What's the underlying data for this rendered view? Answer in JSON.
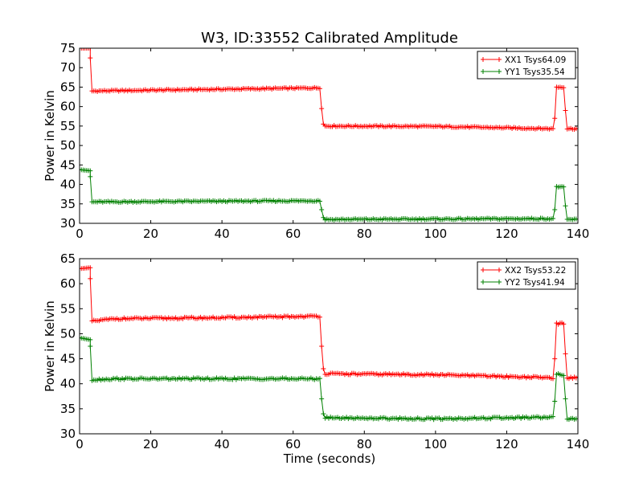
{
  "chart_data": {
    "title": "W3, ID:33552 Calibrated Amplitude",
    "xlabel": "Time (seconds)",
    "subplots": [
      {
        "type": "line",
        "ylabel": "Power in Kelvin",
        "xlim": [
          0,
          140
        ],
        "ylim": [
          30,
          75
        ],
        "xticks": [
          0,
          20,
          40,
          60,
          80,
          100,
          120,
          140
        ],
        "yticks": [
          30,
          35,
          40,
          45,
          50,
          55,
          60,
          65,
          70,
          75
        ],
        "legend_position": "top-right",
        "marker": "+",
        "series": [
          {
            "name": "XX1 Tsys64.09",
            "color": "#ff0000",
            "segments": [
              {
                "x": [
                  0,
                  3
                ],
                "y": [
                  75,
                  75
                ]
              },
              {
                "x": [
                  3.0
                ],
                "y": [
                  72.5
                ]
              },
              {
                "x": [
                  3.5,
                  67.5
                ],
                "y": [
                  64.0,
                  64.8
                ]
              },
              {
                "x": [
                  68.0
                ],
                "y": [
                  59.5
                ]
              },
              {
                "x": [
                  68.5
                ],
                "y": [
                  55.5
                ]
              },
              {
                "x": [
                  69.0,
                  100.0
                ],
                "y": [
                  55.0,
                  54.9
                ]
              },
              {
                "x": [
                  100.0,
                  133.0
                ],
                "y": [
                  54.9,
                  54.3
                ]
              },
              {
                "x": [
                  133.5
                ],
                "y": [
                  57.0
                ]
              },
              {
                "x": [
                  134.0,
                  136.0
                ],
                "y": [
                  65.0,
                  65.0
                ]
              },
              {
                "x": [
                  136.5
                ],
                "y": [
                  59.0
                ]
              },
              {
                "x": [
                  137.0,
                  140.0
                ],
                "y": [
                  54.3,
                  54.3
                ]
              }
            ]
          },
          {
            "name": "YY1 Tsys35.54",
            "color": "#008000",
            "segments": [
              {
                "x": [
                  0,
                  3
                ],
                "y": [
                  43.8,
                  43.5
                ]
              },
              {
                "x": [
                  3.0
                ],
                "y": [
                  42.0
                ]
              },
              {
                "x": [
                  3.5,
                  67.5
                ],
                "y": [
                  35.5,
                  35.8
                ]
              },
              {
                "x": [
                  68.0
                ],
                "y": [
                  33.5
                ]
              },
              {
                "x": [
                  68.5
                ],
                "y": [
                  31.5
                ]
              },
              {
                "x": [
                  69.0,
                  133.0
                ],
                "y": [
                  31.0,
                  31.2
                ]
              },
              {
                "x": [
                  133.5
                ],
                "y": [
                  33.5
                ]
              },
              {
                "x": [
                  134.0,
                  136.0
                ],
                "y": [
                  39.5,
                  39.2
                ]
              },
              {
                "x": [
                  136.5
                ],
                "y": [
                  34.5
                ]
              },
              {
                "x": [
                  137.0,
                  140.0
                ],
                "y": [
                  31.0,
                  31.0
                ]
              }
            ]
          }
        ]
      },
      {
        "type": "line",
        "ylabel": "Power in Kelvin",
        "xlabel": "Time (seconds)",
        "xlim": [
          0,
          140
        ],
        "ylim": [
          30,
          65
        ],
        "xticks": [
          0,
          20,
          40,
          60,
          80,
          100,
          120,
          140
        ],
        "yticks": [
          30,
          35,
          40,
          45,
          50,
          55,
          60,
          65
        ],
        "legend_position": "top-right",
        "marker": "+",
        "series": [
          {
            "name": "XX2 Tsys53.22",
            "color": "#ff0000",
            "segments": [
              {
                "x": [
                  0,
                  3
                ],
                "y": [
                  63.0,
                  63.2
                ]
              },
              {
                "x": [
                  3.0
                ],
                "y": [
                  61.0
                ]
              },
              {
                "x": [
                  3.5,
                  10,
                  40,
                  67.5
                ],
                "y": [
                  52.5,
                  53.0,
                  53.2,
                  53.5
                ]
              },
              {
                "x": [
                  68.0
                ],
                "y": [
                  47.5
                ]
              },
              {
                "x": [
                  68.5
                ],
                "y": [
                  43.0
                ]
              },
              {
                "x": [
                  69.0,
                  100.0,
                  133.0
                ],
                "y": [
                  42.0,
                  41.8,
                  41.2
                ]
              },
              {
                "x": [
                  133.5
                ],
                "y": [
                  45.0
                ]
              },
              {
                "x": [
                  134.0,
                  136.0
                ],
                "y": [
                  52.0,
                  52.0
                ]
              },
              {
                "x": [
                  136.5
                ],
                "y": [
                  46.0
                ]
              },
              {
                "x": [
                  137.0,
                  140.0
                ],
                "y": [
                  41.2,
                  41.2
                ]
              }
            ]
          },
          {
            "name": "YY2 Tsys41.94",
            "color": "#008000",
            "segments": [
              {
                "x": [
                  0,
                  3
                ],
                "y": [
                  49.2,
                  48.8
                ]
              },
              {
                "x": [
                  3.0
                ],
                "y": [
                  47.5
                ]
              },
              {
                "x": [
                  3.5,
                  10,
                  30,
                  67.5
                ],
                "y": [
                  40.8,
                  41.0,
                  41.0,
                  41.0
                ]
              },
              {
                "x": [
                  68.0
                ],
                "y": [
                  37.0
                ]
              },
              {
                "x": [
                  68.5
                ],
                "y": [
                  34.0
                ]
              },
              {
                "x": [
                  69.0,
                  100.0,
                  133.0
                ],
                "y": [
                  33.2,
                  33.0,
                  33.3
                ]
              },
              {
                "x": [
                  133.5
                ],
                "y": [
                  36.5
                ]
              },
              {
                "x": [
                  134.0,
                  136.0
                ],
                "y": [
                  42.0,
                  41.8
                ]
              },
              {
                "x": [
                  136.5
                ],
                "y": [
                  37.0
                ]
              },
              {
                "x": [
                  137.0,
                  140.0
                ],
                "y": [
                  33.0,
                  33.0
                ]
              }
            ]
          }
        ]
      }
    ]
  }
}
